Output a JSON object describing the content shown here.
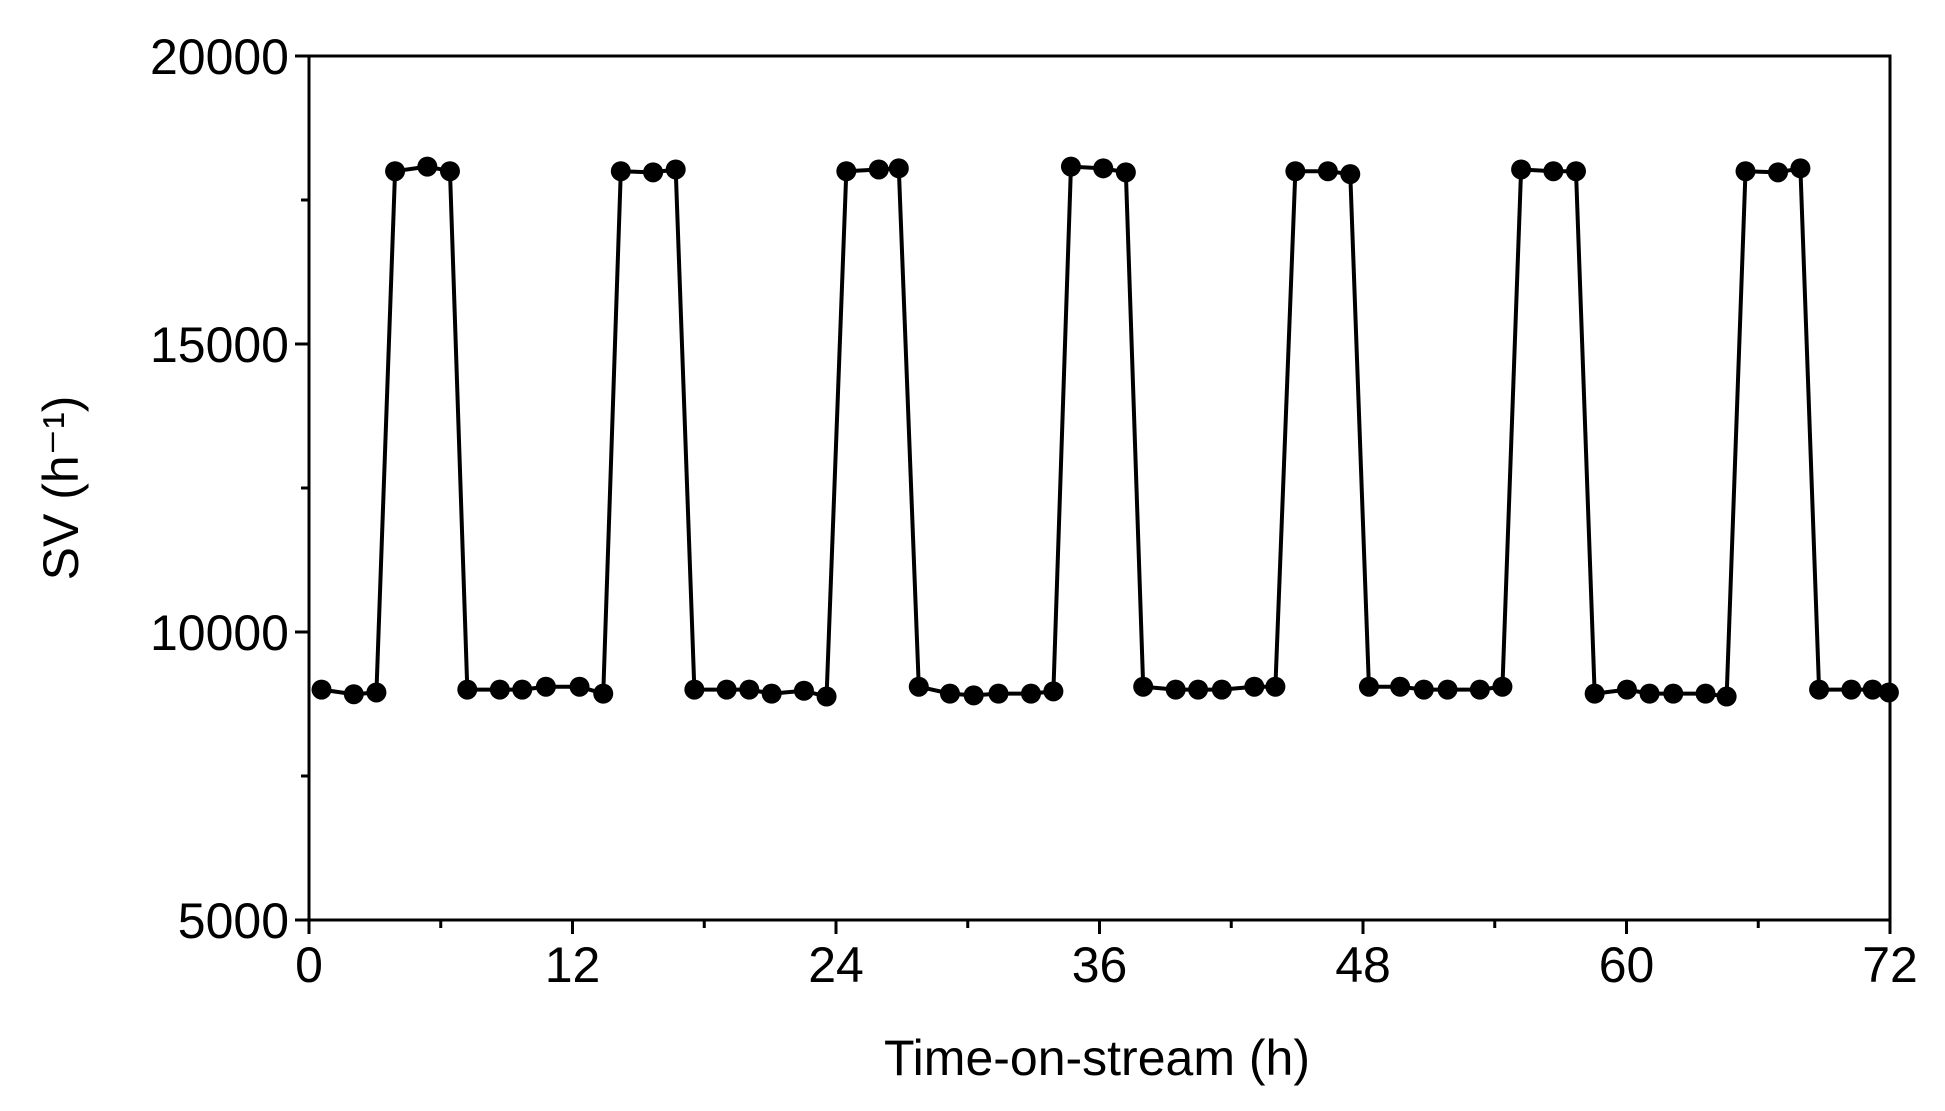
{
  "chart_data": {
    "type": "line",
    "xlabel": "Time-on-stream (h)",
    "ylabel": "SV (h⁻¹)",
    "x": [
      0.57,
      2.04,
      3.07,
      3.92,
      5.39,
      6.42,
      7.21,
      8.69,
      9.71,
      10.79,
      12.32,
      13.4,
      14.2,
      15.67,
      16.7,
      17.55,
      19.02,
      20.05,
      21.07,
      22.54,
      23.57,
      24.47,
      25.95,
      26.86,
      27.77,
      29.19,
      30.27,
      31.4,
      32.88,
      33.9,
      34.7,
      36.17,
      37.2,
      37.99,
      39.47,
      40.49,
      41.57,
      43.05,
      44.01,
      44.92,
      46.4,
      47.42,
      48.27,
      49.69,
      50.77,
      51.85,
      53.32,
      54.35,
      55.2,
      56.67,
      57.7,
      58.55,
      60.02,
      61.05,
      62.13,
      63.6,
      64.56,
      65.42,
      66.9,
      67.92,
      68.77,
      70.24,
      71.21,
      71.95
    ],
    "series": [
      {
        "color": "#000000",
        "values": [
          9000,
          8920,
          8950,
          18000,
          18080,
          18000,
          9000,
          9000,
          9000,
          9050,
          9050,
          8930,
          18000,
          17980,
          18030,
          9000,
          9000,
          9000,
          8930,
          8980,
          8880,
          18000,
          18030,
          18050,
          9050,
          8930,
          8900,
          8930,
          8930,
          8970,
          18080,
          18050,
          17980,
          9050,
          9000,
          9000,
          9000,
          9050,
          9050,
          18000,
          18000,
          17950,
          9050,
          9050,
          9000,
          9000,
          9000,
          9050,
          18030,
          18000,
          18000,
          8930,
          9000,
          8930,
          8930,
          8930,
          8880,
          18000,
          17980,
          18050,
          9000,
          9000,
          9000,
          8950
        ]
      }
    ],
    "xlim": [
      0,
      72
    ],
    "xticks": [
      0,
      12,
      24,
      36,
      48,
      60,
      72
    ],
    "ylim": [
      5000,
      20000
    ],
    "yticks": [
      5000,
      10000,
      15000,
      20000
    ]
  }
}
